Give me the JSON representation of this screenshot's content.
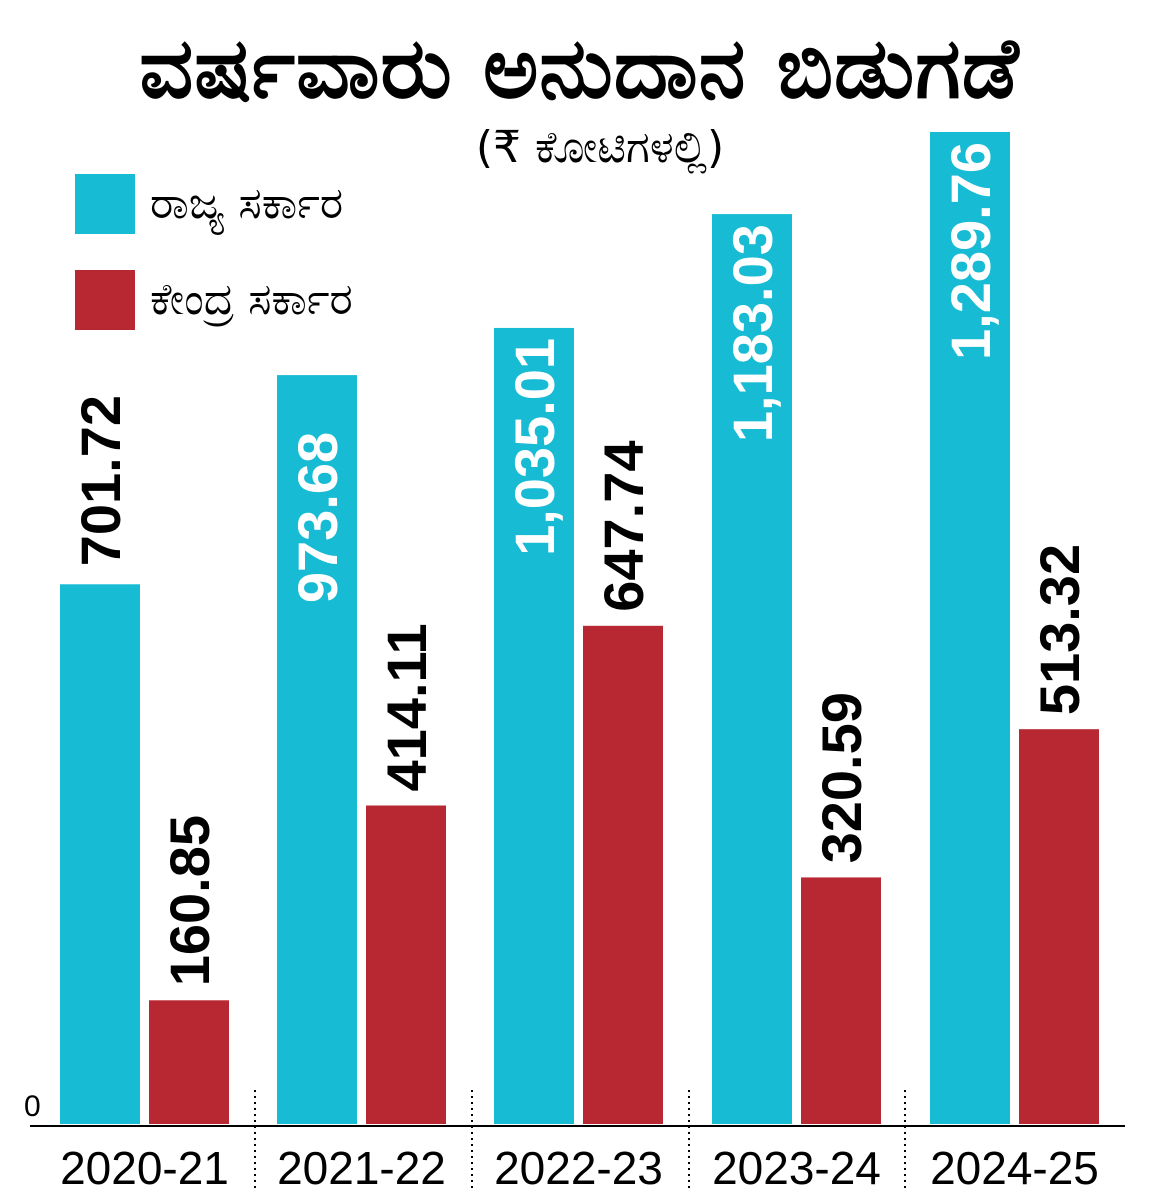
{
  "chart_data": {
    "type": "bar",
    "title": "ವರ್ಷವಾರು ಅನುದಾನ ಬಿಡುಗಡೆ",
    "subtitle": "(₹ ಕೋಟಿಗಳಲ್ಲಿ)",
    "categories": [
      "2020-21",
      "2021-22",
      "2022-23",
      "2023-24",
      "2024-25"
    ],
    "series": [
      {
        "name": "ರಾಜ್ಯ ಸರ್ಕಾರ",
        "color": "#17bcd4",
        "values": [
          701.72,
          973.68,
          1035.01,
          1183.03,
          1289.76
        ],
        "labels": [
          "701.72",
          "973.68",
          "1,035.01",
          "1,183.03",
          "1,289.76"
        ],
        "label_color": "#ffffff",
        "first_label_color": "#000000"
      },
      {
        "name": "ಕೇಂದ್ರ ಸರ್ಕಾರ",
        "color": "#b82832",
        "values": [
          160.85,
          414.11,
          647.74,
          320.59,
          513.32
        ],
        "labels": [
          "160.85",
          "414.11",
          "647.74",
          "320.59",
          "513.32"
        ],
        "label_color": "#000000"
      }
    ],
    "y_axis_label": "0",
    "ylim": [
      0,
      1289.76
    ],
    "legend_position": "top-left",
    "grid": false
  }
}
